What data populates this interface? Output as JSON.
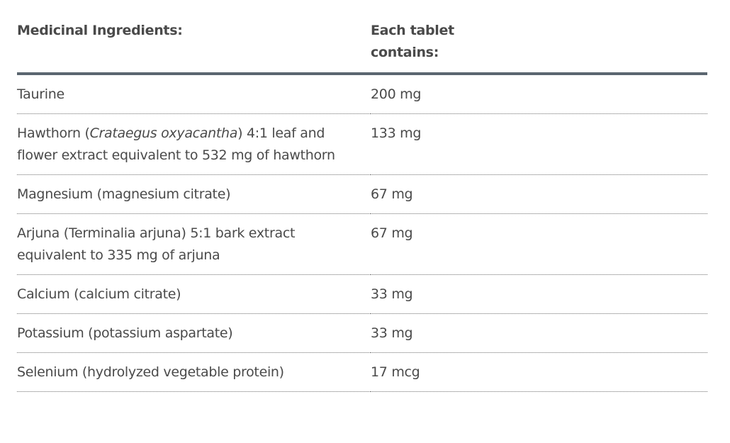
{
  "headers": {
    "ingredient": "Medicinal Ingredients:",
    "amount": "Each tablet contains:"
  },
  "rows": [
    {
      "pre": "Taurine",
      "italic": "",
      "post": "",
      "amount": "200 mg"
    },
    {
      "pre": "Hawthorn (",
      "italic": "Crataegus oxyacantha",
      "post": ") 4:1 leaf and flower extract equivalent to 532 mg of hawthorn",
      "amount": "133 mg"
    },
    {
      "pre": "Magnesium (magnesium citrate)",
      "italic": "",
      "post": "",
      "amount": "67 mg"
    },
    {
      "pre": "Arjuna (Terminalia arjuna) 5:1 bark extract equivalent to 335 mg of arjuna",
      "italic": "",
      "post": "",
      "amount": "67 mg"
    },
    {
      "pre": "Calcium (calcium citrate)",
      "italic": "",
      "post": "",
      "amount": "33 mg"
    },
    {
      "pre": "Potassium (potassium aspartate)",
      "italic": "",
      "post": "",
      "amount": "33 mg"
    },
    {
      "pre": "Selenium (hydrolyzed vegetable protein)",
      "italic": "",
      "post": "",
      "amount": "17 mcg"
    }
  ]
}
